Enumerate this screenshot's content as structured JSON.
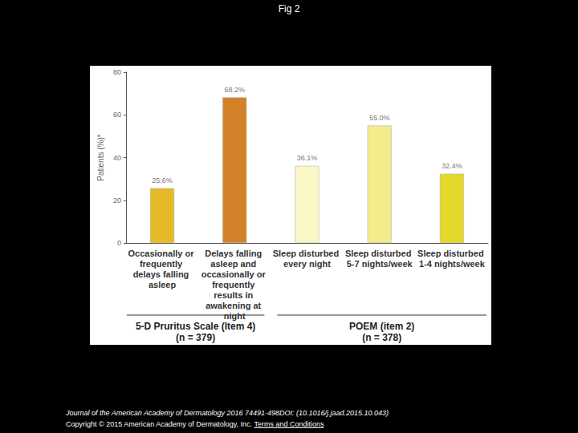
{
  "chart_data": {
    "type": "bar",
    "title": "Fig 2",
    "y_label": "Patients (%)*",
    "categories": [
      "Occasionally or frequently delays falling asleep",
      "Delays falling asleep and occasionally or frequently results in awakening at night",
      "Sleep disturbed every night",
      "Sleep disturbed 5-7 nights/week",
      "Sleep disturbed 1-4 nights/week"
    ],
    "values": [
      25.6,
      68.2,
      36.1,
      55.0,
      32.4
    ],
    "value_labels": [
      "25.6%",
      "68.2%",
      "36.1%",
      "55.0%",
      "32.4%"
    ],
    "data_labels": true,
    "colors": [
      "#e6b927",
      "#d4822a",
      "#fbf6c6",
      "#f3ec8c",
      "#e4d82b"
    ],
    "ylim": [
      0,
      80
    ],
    "yticks": [
      0,
      20,
      40,
      60,
      80
    ],
    "grid": false,
    "groups": [
      {
        "label": "5-D Pruritus Scale (Item 4)\n(n = 379)",
        "categories": [
          "Occasionally or frequently delays falling asleep",
          "Delays falling asleep and occasionally or frequently results in awakening at night"
        ]
      },
      {
        "label": "POEM (item 2)\n(n = 378)",
        "categories": [
          "Sleep disturbed every night",
          "Sleep disturbed 5-7 nights/week",
          "Sleep disturbed 1-4 nights/week"
        ]
      }
    ]
  },
  "footer": {
    "citation": "Journal of the American Academy of Dermatology 2016 74491-498DOI: (10.1016/j.jaad.2015.10.043)",
    "copyright": "Copyright © 2015 American Academy of Dermatology, Inc.",
    "link": "Terms and Conditions"
  }
}
